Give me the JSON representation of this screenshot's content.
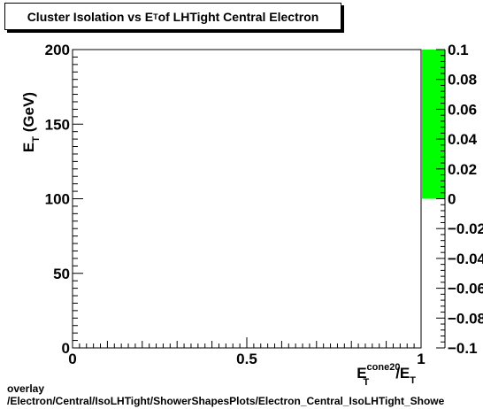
{
  "title": {
    "main": "Cluster Isolation vs E",
    "main_sub": "T",
    "rest": " of LHTight Central  Electron"
  },
  "footer": {
    "line1": "overlay",
    "line2": "/Electron/Central/IsoLHTight/ShowerShapesPlots/Electron_Central_IsoLHTight_Showe"
  },
  "chart_data": {
    "type": "heatmap",
    "title": "Cluster Isolation vs E_T of LHTight Central  Electron",
    "xlabel": {
      "base": "E",
      "sup": "cone20",
      "sub": "T",
      "slash": "/E",
      "sub2": "T"
    },
    "ylabel": {
      "base": "E",
      "sub": "T",
      "unit": " (GeV)"
    },
    "xlim": [
      0,
      1
    ],
    "ylim": [
      0,
      200
    ],
    "xticks": [
      {
        "value": 0,
        "label": "0"
      },
      {
        "value": 0.5,
        "label": "0.5"
      },
      {
        "value": 1,
        "label": "1"
      }
    ],
    "yticks": [
      {
        "value": 0,
        "label": "0"
      },
      {
        "value": 50,
        "label": "50"
      },
      {
        "value": 100,
        "label": "100"
      },
      {
        "value": 150,
        "label": "150"
      },
      {
        "value": 200,
        "label": "200"
      }
    ],
    "colorbar": {
      "range": [
        -0.1,
        0.1
      ],
      "fill_range": [
        0,
        0.1
      ],
      "fill_color": "#00ff00",
      "ticks": [
        {
          "value": 0.1,
          "label": "0.1"
        },
        {
          "value": 0.08,
          "label": "0.08"
        },
        {
          "value": 0.06,
          "label": "0.06"
        },
        {
          "value": 0.04,
          "label": "0.04"
        },
        {
          "value": 0.02,
          "label": "0.02"
        },
        {
          "value": 0,
          "label": "0"
        },
        {
          "value": -0.02,
          "label": "−0.02"
        },
        {
          "value": -0.04,
          "label": "−0.04"
        },
        {
          "value": -0.06,
          "label": "−0.06"
        },
        {
          "value": -0.08,
          "label": "−0.08"
        },
        {
          "value": -0.1,
          "label": "−0.1"
        }
      ]
    },
    "cells": []
  }
}
